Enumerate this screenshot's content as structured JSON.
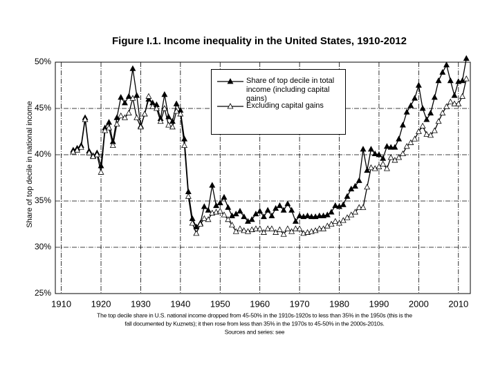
{
  "chart_data": {
    "type": "line",
    "title": "Figure I.1. Income inequality in the United States, 1910-2012",
    "y_label": "Share of top decile in national income",
    "caption": [
      "The top decile share in U.S. national income dropped from 45-50% in the 1910s-1920s to less than 35% in the 1950s (this is the",
      "fall documented by Kuznets); it then rose from less than 35% in the 1970s to 45-50% in the 2000s-2010s.",
      "Sources and series: see"
    ],
    "x": [
      1913,
      1914,
      1915,
      1916,
      1917,
      1918,
      1919,
      1920,
      1921,
      1922,
      1923,
      1924,
      1925,
      1926,
      1927,
      1928,
      1929,
      1930,
      1931,
      1932,
      1933,
      1934,
      1935,
      1936,
      1937,
      1938,
      1939,
      1940,
      1941,
      1942,
      1943,
      1944,
      1945,
      1946,
      1947,
      1948,
      1949,
      1950,
      1951,
      1952,
      1953,
      1954,
      1955,
      1956,
      1957,
      1958,
      1959,
      1960,
      1961,
      1962,
      1963,
      1964,
      1965,
      1966,
      1967,
      1968,
      1969,
      1970,
      1971,
      1972,
      1973,
      1974,
      1975,
      1976,
      1977,
      1978,
      1979,
      1980,
      1981,
      1982,
      1983,
      1984,
      1985,
      1986,
      1987,
      1988,
      1989,
      1990,
      1991,
      1992,
      1993,
      1994,
      1995,
      1996,
      1997,
      1998,
      1999,
      2000,
      2001,
      2002,
      2003,
      2004,
      2005,
      2006,
      2007,
      2008,
      2009,
      2010,
      2011,
      2012
    ],
    "series": [
      {
        "name": "Share of top decile in total income (including capital gains)",
        "color": "#000000",
        "marker": "filled-triangle",
        "values": [
          40.5,
          40.7,
          41.0,
          44.0,
          40.4,
          39.9,
          40.2,
          38.8,
          42.9,
          43.5,
          41.4,
          44.0,
          46.2,
          45.6,
          46.3,
          49.3,
          46.4,
          43.1,
          44.4,
          46.0,
          45.6,
          45.4,
          43.9,
          46.5,
          44.1,
          43.6,
          45.5,
          44.8,
          41.7,
          36.0,
          33.1,
          32.2,
          32.6,
          34.4,
          34.0,
          36.7,
          34.5,
          34.8,
          35.4,
          34.3,
          33.4,
          33.6,
          33.9,
          33.3,
          32.8,
          33.0,
          33.6,
          33.9,
          33.3,
          34.0,
          33.4,
          34.2,
          34.5,
          34.0,
          34.7,
          34.0,
          32.8,
          33.4,
          33.3,
          33.4,
          33.3,
          33.3,
          33.4,
          33.4,
          33.5,
          33.8,
          34.5,
          34.4,
          34.6,
          35.5,
          36.3,
          36.6,
          37.2,
          40.6,
          38.3,
          40.6,
          40.1,
          40.0,
          39.6,
          40.9,
          40.8,
          40.8,
          41.7,
          43.2,
          44.6,
          45.3,
          46.1,
          47.5,
          45.0,
          43.8,
          44.5,
          46.2,
          48.0,
          48.9,
          49.7,
          48.0,
          46.4,
          47.9,
          48.0,
          50.4
        ]
      },
      {
        "name": "Excluding capital gains",
        "color": "#000000",
        "marker": "open-triangle",
        "values": [
          40.3,
          40.5,
          40.8,
          43.8,
          40.2,
          39.8,
          40.0,
          38.1,
          42.6,
          42.9,
          41.0,
          43.3,
          44.2,
          44.0,
          44.5,
          46.1,
          44.0,
          43.0,
          44.4,
          46.3,
          45.2,
          45.0,
          43.6,
          45.0,
          43.2,
          43.0,
          44.7,
          44.4,
          41.0,
          35.5,
          32.6,
          31.5,
          32.5,
          33.1,
          33.0,
          33.7,
          33.8,
          33.9,
          33.5,
          33.0,
          32.4,
          31.7,
          32.0,
          31.8,
          31.7,
          31.9,
          32.0,
          32.0,
          31.6,
          32.0,
          32.0,
          31.6,
          31.9,
          31.4,
          32.0,
          31.7,
          32.0,
          32.0,
          31.5,
          31.6,
          31.7,
          31.8,
          32.0,
          32.0,
          32.3,
          32.5,
          32.8,
          32.6,
          32.9,
          33.2,
          33.5,
          33.8,
          34.3,
          34.3,
          36.5,
          38.6,
          38.5,
          38.7,
          39.0,
          38.5,
          39.7,
          39.4,
          39.7,
          40.1,
          40.9,
          41.3,
          41.7,
          42.5,
          43.1,
          42.2,
          42.1,
          42.6,
          43.6,
          44.5,
          45.2,
          45.7,
          45.5,
          45.5,
          46.3,
          48.2
        ]
      }
    ],
    "xlim": [
      1908.5,
      2013
    ],
    "xticks": [
      1910,
      1920,
      1930,
      1940,
      1950,
      1960,
      1970,
      1980,
      1990,
      2000,
      2010
    ],
    "ylim": [
      25,
      50
    ],
    "yticks": [
      {
        "value": 25,
        "label": "25%"
      },
      {
        "value": 30,
        "label": "30%"
      },
      {
        "value": 35,
        "label": "35%"
      },
      {
        "value": 40,
        "label": "40%"
      },
      {
        "value": 45,
        "label": "45%"
      },
      {
        "value": 50,
        "label": "50%"
      }
    ],
    "grid": true,
    "legend": "upper center"
  }
}
